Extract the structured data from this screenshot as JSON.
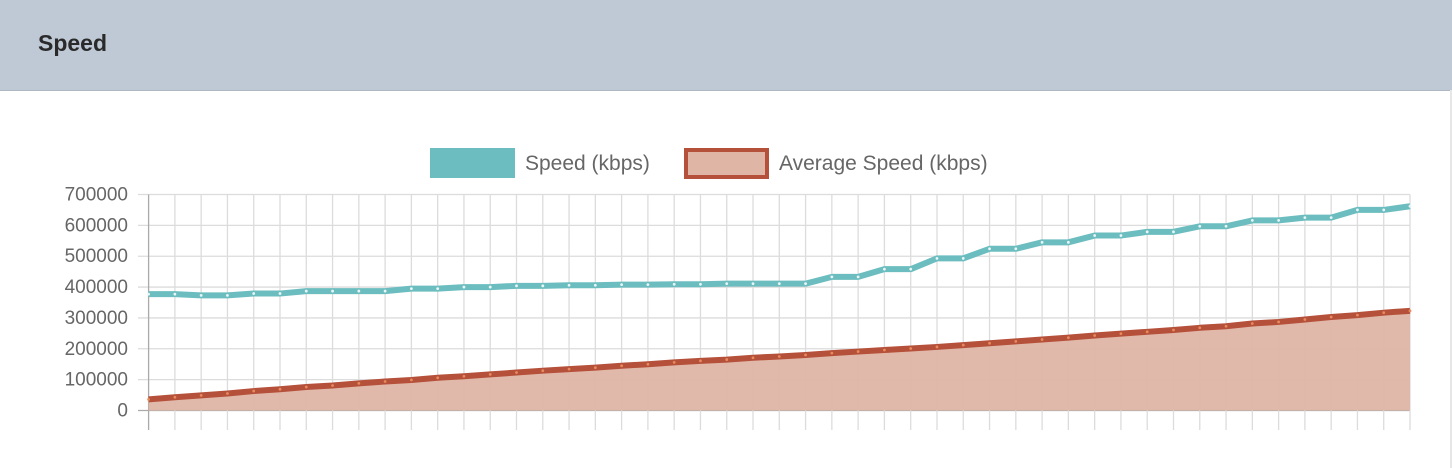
{
  "header": {
    "title": "Speed"
  },
  "chart_data": {
    "type": "line",
    "title": "",
    "xlabel": "",
    "ylabel": "",
    "ylim": [
      0,
      700000
    ],
    "yticks": [
      "0",
      "100000",
      "200000",
      "300000",
      "400000",
      "500000",
      "600000",
      "700000"
    ],
    "grid": true,
    "legend_position": "top",
    "series": [
      {
        "name": "Speed (kbps)",
        "color": "#6cbdbf",
        "fill": false,
        "values": [
          377000,
          377000,
          373000,
          373000,
          379000,
          379000,
          387000,
          387000,
          387000,
          387000,
          395000,
          395000,
          400000,
          400000,
          404000,
          404000,
          406000,
          406000,
          408000,
          408000,
          409000,
          409000,
          411000,
          411000,
          411000,
          411000,
          433000,
          433000,
          458000,
          458000,
          493000,
          493000,
          524000,
          524000,
          545000,
          545000,
          567000,
          567000,
          579000,
          579000,
          597000,
          597000,
          616000,
          616000,
          625000,
          625000,
          650000,
          650000,
          662000
        ]
      },
      {
        "name": "Average Speed (kbps)",
        "color": "#b5503a",
        "fill_color": "#dfb5a5",
        "fill": true,
        "values": [
          36000,
          43000,
          49000,
          55000,
          63000,
          69000,
          76000,
          81000,
          88000,
          94000,
          99000,
          106000,
          111000,
          117000,
          123000,
          129000,
          134000,
          139000,
          145000,
          150000,
          156000,
          161000,
          165000,
          171000,
          175000,
          180000,
          186000,
          191000,
          196000,
          201000,
          206000,
          212000,
          218000,
          224000,
          230000,
          236000,
          243000,
          249000,
          255000,
          261000,
          268000,
          273000,
          282000,
          287000,
          295000,
          303000,
          309000,
          317000,
          323000
        ]
      }
    ]
  }
}
